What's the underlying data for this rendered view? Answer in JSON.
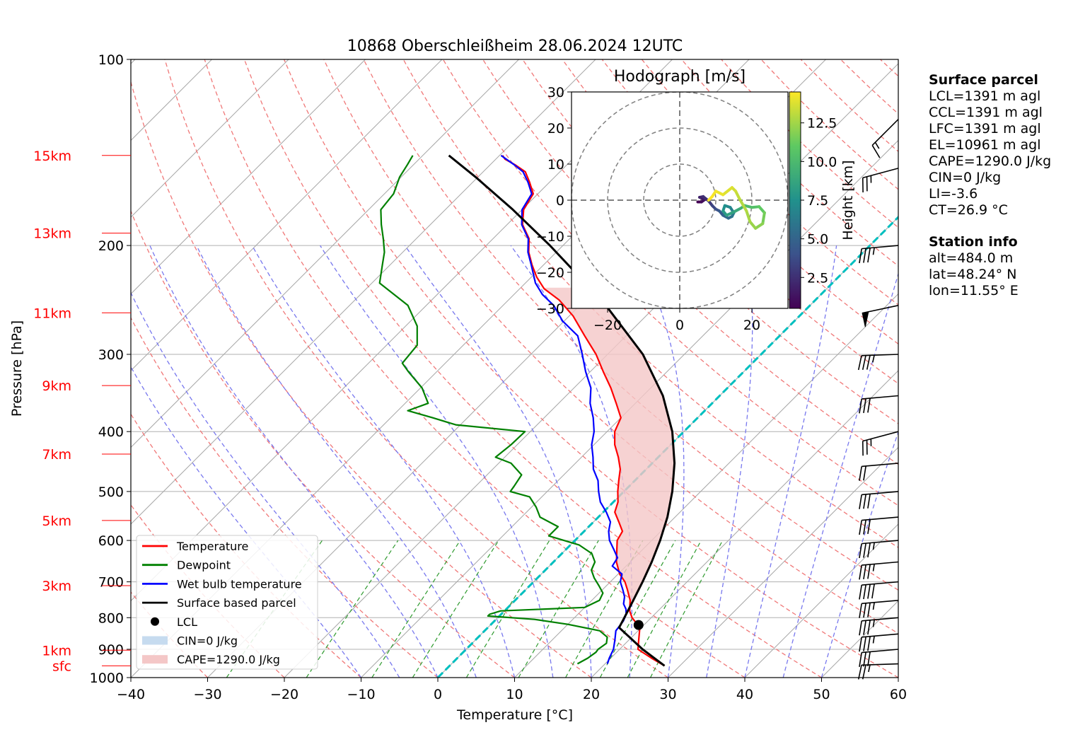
{
  "chart_data": {
    "type": "skew-t log-p sounding",
    "title": "10868 Oberschleißheim 28.06.2024 12UTC",
    "xlabel": "Temperature [°C]",
    "ylabel": "Pressure [hPa]",
    "xlim": [
      -40,
      60
    ],
    "plim": [
      1000,
      100
    ],
    "x_ticks": [
      -40,
      -30,
      -20,
      -10,
      0,
      10,
      20,
      30,
      40,
      50,
      60
    ],
    "p_ticks": [
      1000,
      900,
      800,
      700,
      600,
      500,
      400,
      300,
      200,
      100
    ],
    "height_labels": [
      {
        "label": "sfc",
        "p": 957
      },
      {
        "label": "1km",
        "p": 903
      },
      {
        "label": "3km",
        "p": 710
      },
      {
        "label": "5km",
        "p": 557
      },
      {
        "label": "7km",
        "p": 435
      },
      {
        "label": "9km",
        "p": 337
      },
      {
        "label": "11km",
        "p": 257
      },
      {
        "label": "13km",
        "p": 191
      },
      {
        "label": "15km",
        "p": 143
      }
    ],
    "series": [
      {
        "name": "Temperature",
        "color": "#ff0000",
        "points": [
          [
            957,
            28.0
          ],
          [
            930,
            25.3
          ],
          [
            900,
            22.4
          ],
          [
            870,
            21.3
          ],
          [
            830,
            19.8
          ],
          [
            800,
            17.5
          ],
          [
            780,
            16.3
          ],
          [
            750,
            15.0
          ],
          [
            720,
            13.2
          ],
          [
            700,
            11.9
          ],
          [
            680,
            10.2
          ],
          [
            650,
            8.2
          ],
          [
            620,
            6.6
          ],
          [
            600,
            5.5
          ],
          [
            580,
            5.0
          ],
          [
            560,
            3.3
          ],
          [
            540,
            1.5
          ],
          [
            520,
            0.6
          ],
          [
            500,
            -0.8
          ],
          [
            480,
            -2.1
          ],
          [
            460,
            -3.4
          ],
          [
            440,
            -5.2
          ],
          [
            420,
            -7.3
          ],
          [
            400,
            -9.0
          ],
          [
            380,
            -10.0
          ],
          [
            360,
            -12.5
          ],
          [
            340,
            -15.2
          ],
          [
            320,
            -18.3
          ],
          [
            300,
            -21.5
          ],
          [
            280,
            -25.4
          ],
          [
            260,
            -29.5
          ],
          [
            245,
            -33.4
          ],
          [
            235,
            -36.8
          ],
          [
            225,
            -39.3
          ],
          [
            215,
            -41.5
          ],
          [
            205,
            -43.6
          ],
          [
            195,
            -45.3
          ],
          [
            185,
            -48.0
          ],
          [
            175,
            -49.8
          ],
          [
            165,
            -50.6
          ],
          [
            158,
            -52.6
          ],
          [
            152,
            -54.5
          ],
          [
            148,
            -56.8
          ],
          [
            145,
            -58.8
          ],
          [
            143,
            -59.6
          ]
        ]
      },
      {
        "name": "Dewpoint",
        "color": "#008000",
        "points": [
          [
            950,
            16.4
          ],
          [
            930,
            17.0
          ],
          [
            910,
            17.3
          ],
          [
            900,
            17.2
          ],
          [
            880,
            17.5
          ],
          [
            860,
            16.8
          ],
          [
            840,
            15.0
          ],
          [
            820,
            10.0
          ],
          [
            805,
            5.0
          ],
          [
            795,
            -1.5
          ],
          [
            790,
            -1.5
          ],
          [
            780,
            -0.5
          ],
          [
            770,
            10.0
          ],
          [
            750,
            11.0
          ],
          [
            730,
            10.5
          ],
          [
            710,
            9.0
          ],
          [
            690,
            7.4
          ],
          [
            670,
            6.0
          ],
          [
            650,
            5.4
          ],
          [
            630,
            3.9
          ],
          [
            610,
            1.1
          ],
          [
            590,
            -4.0
          ],
          [
            570,
            -4.0
          ],
          [
            550,
            -7.6
          ],
          [
            530,
            -9.4
          ],
          [
            510,
            -11.6
          ],
          [
            500,
            -14.8
          ],
          [
            490,
            -15.0
          ],
          [
            470,
            -15.5
          ],
          [
            450,
            -18.4
          ],
          [
            440,
            -21.2
          ],
          [
            420,
            -20.8
          ],
          [
            400,
            -20.7
          ],
          [
            390,
            -30.6
          ],
          [
            380,
            -34.5
          ],
          [
            370,
            -38.7
          ],
          [
            360,
            -37.0
          ],
          [
            340,
            -39.8
          ],
          [
            320,
            -43.7
          ],
          [
            310,
            -45.6
          ],
          [
            290,
            -46.0
          ],
          [
            270,
            -48.5
          ],
          [
            250,
            -52.4
          ],
          [
            230,
            -59.0
          ],
          [
            215,
            -61.0
          ],
          [
            205,
            -62.4
          ],
          [
            195,
            -64.3
          ],
          [
            185,
            -66.4
          ],
          [
            175,
            -68.4
          ],
          [
            165,
            -68.8
          ],
          [
            155,
            -70.2
          ],
          [
            148,
            -70.8
          ],
          [
            143,
            -71.3
          ]
        ]
      },
      {
        "name": "Wet bulb temperature",
        "color": "#0000ff",
        "points": [
          [
            950,
            20.3
          ],
          [
            930,
            19.8
          ],
          [
            900,
            19.2
          ],
          [
            870,
            18.2
          ],
          [
            840,
            17.1
          ],
          [
            810,
            16.8
          ],
          [
            790,
            16.3
          ],
          [
            775,
            15.6
          ],
          [
            760,
            14.6
          ],
          [
            740,
            13.8
          ],
          [
            720,
            12.6
          ],
          [
            700,
            11.3
          ],
          [
            680,
            10.5
          ],
          [
            660,
            8.2
          ],
          [
            640,
            7.8
          ],
          [
            620,
            6.2
          ],
          [
            600,
            4.5
          ],
          [
            580,
            3.2
          ],
          [
            560,
            2.2
          ],
          [
            540,
            0.4
          ],
          [
            520,
            -1.7
          ],
          [
            500,
            -3.3
          ],
          [
            480,
            -4.8
          ],
          [
            460,
            -6.9
          ],
          [
            440,
            -8.5
          ],
          [
            420,
            -10.3
          ],
          [
            400,
            -11.7
          ],
          [
            380,
            -13.6
          ],
          [
            360,
            -15.9
          ],
          [
            340,
            -17.8
          ],
          [
            320,
            -20.6
          ],
          [
            300,
            -23.3
          ],
          [
            280,
            -26.3
          ],
          [
            265,
            -30.2
          ],
          [
            250,
            -33.4
          ],
          [
            240,
            -36.3
          ],
          [
            230,
            -38.7
          ],
          [
            215,
            -41.6
          ],
          [
            205,
            -43.7
          ],
          [
            195,
            -45.4
          ],
          [
            185,
            -48.1
          ],
          [
            175,
            -50.0
          ],
          [
            165,
            -50.8
          ],
          [
            158,
            -52.8
          ],
          [
            152,
            -54.8
          ],
          [
            148,
            -56.9
          ],
          [
            143,
            -59.8
          ]
        ]
      },
      {
        "name": "Surface based parcel",
        "color": "#000000",
        "points": [
          [
            957,
            28.0
          ],
          [
            900,
            23.0
          ],
          [
            830,
            17.1
          ],
          [
            800,
            16.5
          ],
          [
            750,
            15.4
          ],
          [
            700,
            14.2
          ],
          [
            650,
            12.8
          ],
          [
            600,
            11.1
          ],
          [
            550,
            9.0
          ],
          [
            500,
            6.3
          ],
          [
            450,
            2.9
          ],
          [
            400,
            -1.5
          ],
          [
            350,
            -7.4
          ],
          [
            300,
            -15.4
          ],
          [
            250,
            -26.6
          ],
          [
            230,
            -32.2
          ],
          [
            200,
            -41.7
          ],
          [
            175,
            -51.2
          ],
          [
            155,
            -60.3
          ],
          [
            143,
            -66.6
          ]
        ]
      }
    ],
    "lcl": {
      "name": "LCL",
      "p": 822,
      "t": 19.3
    },
    "shading": [
      {
        "name": "CIN=0 J/kg",
        "color": "#c6dbef"
      },
      {
        "name": "CAPE=1290.0 J/kg",
        "color": "#f4c7c7"
      }
    ],
    "legend_position": "lower-left",
    "legend": [
      "Temperature",
      "Dewpoint",
      "Wet bulb temperature",
      "Surface based parcel",
      "LCL",
      "CIN=0 J/kg",
      "CAPE=1290.0 J/kg"
    ],
    "zero_isotherm_color": "#00bfbf",
    "wind_barbs": [
      {
        "p": 950,
        "dir": 268,
        "speed_kt": 25
      },
      {
        "p": 900,
        "dir": 265,
        "speed_kt": 30
      },
      {
        "p": 850,
        "dir": 265,
        "speed_kt": 35
      },
      {
        "p": 800,
        "dir": 265,
        "speed_kt": 35
      },
      {
        "p": 750,
        "dir": 265,
        "speed_kt": 35
      },
      {
        "p": 700,
        "dir": 265,
        "speed_kt": 40
      },
      {
        "p": 650,
        "dir": 265,
        "speed_kt": 35
      },
      {
        "p": 600,
        "dir": 265,
        "speed_kt": 35
      },
      {
        "p": 550,
        "dir": 265,
        "speed_kt": 30
      },
      {
        "p": 500,
        "dir": 265,
        "speed_kt": 30
      },
      {
        "p": 450,
        "dir": 265,
        "speed_kt": 20
      },
      {
        "p": 400,
        "dir": 255,
        "speed_kt": 25
      },
      {
        "p": 350,
        "dir": 265,
        "speed_kt": 30
      },
      {
        "p": 300,
        "dir": 268,
        "speed_kt": 35
      },
      {
        "p": 250,
        "dir": 258,
        "speed_kt": 50
      },
      {
        "p": 200,
        "dir": 265,
        "speed_kt": 35
      },
      {
        "p": 150,
        "dir": 255,
        "speed_kt": 25
      },
      {
        "p": 125,
        "dir": 225,
        "speed_kt": 15
      }
    ],
    "hodograph": {
      "title": "Hodograph [m/s]",
      "xlim": [
        -30,
        30
      ],
      "ylim": [
        -30,
        30
      ],
      "ticks": [
        -30,
        -20,
        -10,
        0,
        10,
        20,
        30
      ],
      "x_tick_labels": [
        -20,
        0,
        20
      ],
      "rings": [
        10,
        20,
        30
      ],
      "colorbar": {
        "label": "Height [km]",
        "min": 0.5,
        "max": 14.5,
        "ticks": [
          2.5,
          5.0,
          7.5,
          10.0,
          12.5
        ]
      },
      "points": [
        [
          5,
          -0.5,
          0.5
        ],
        [
          6,
          -0.5,
          1.0
        ],
        [
          7,
          0.2,
          1.5
        ],
        [
          5.5,
          0.8,
          2.0
        ],
        [
          6.5,
          1.0,
          2.5
        ],
        [
          8,
          -0.2,
          3.0
        ],
        [
          9,
          -1.5,
          3.5
        ],
        [
          10,
          -2.5,
          4.0
        ],
        [
          11,
          -3.0,
          4.5
        ],
        [
          12,
          -4.2,
          5.0
        ],
        [
          13.5,
          -5.0,
          5.5
        ],
        [
          14.5,
          -4.5,
          6.0
        ],
        [
          15,
          -3.5,
          6.5
        ],
        [
          14,
          -2.0,
          7.0
        ],
        [
          12.5,
          -1.5,
          7.5
        ],
        [
          12,
          -3.0,
          8.0
        ],
        [
          13,
          -4.2,
          8.5
        ],
        [
          15.5,
          -3.0,
          9.0
        ],
        [
          17,
          -2.2,
          9.5
        ],
        [
          18,
          -1.5,
          10.0
        ],
        [
          20,
          -2.0,
          10.5
        ],
        [
          22,
          -1.8,
          11.0
        ],
        [
          23.5,
          -3.5,
          11.5
        ],
        [
          23,
          -6.5,
          12.0
        ],
        [
          21,
          -7.8,
          12.3
        ],
        [
          19.5,
          -6.0,
          12.6
        ],
        [
          18.5,
          -3.0,
          12.9
        ],
        [
          16.5,
          0.5,
          13.2
        ],
        [
          15.5,
          2.5,
          13.5
        ],
        [
          14.5,
          3.5,
          13.8
        ],
        [
          12,
          1.5,
          14.1
        ],
        [
          10,
          2.5,
          14.3
        ],
        [
          9,
          1.0,
          14.5
        ],
        [
          8,
          0,
          14.6
        ]
      ]
    }
  },
  "surface_parcel": {
    "header": "Surface parcel",
    "lines": [
      "LCL=1391 m agl",
      "CCL=1391 m agl",
      "LFC=1391 m agl",
      "EL=10961 m agl",
      "CAPE=1290.0 J/kg",
      "CIN=0 J/kg",
      "LI=-3.6",
      "CT=26.9 °C"
    ]
  },
  "station_info": {
    "header": "Station info",
    "lines": [
      "alt=484.0 m",
      "lat=48.24° N",
      "lon=11.55° E"
    ]
  }
}
